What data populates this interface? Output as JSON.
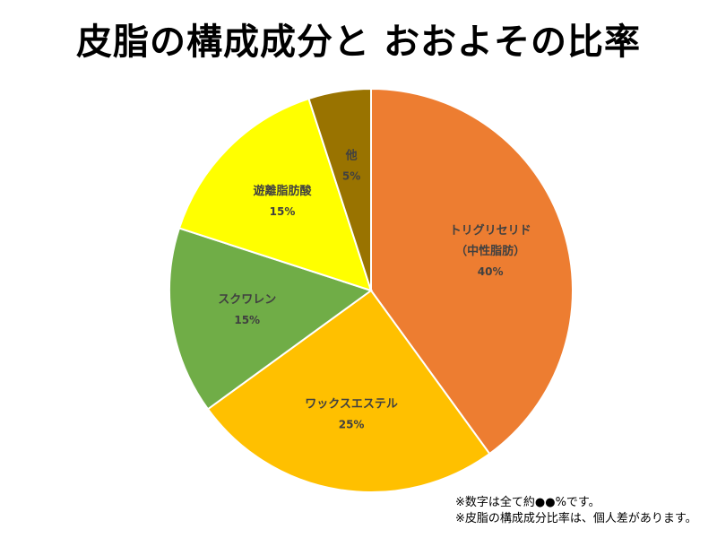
{
  "chart_data": {
    "type": "pie",
    "title": "皮脂の構成成分と おおよその比率",
    "slices": [
      {
        "labels": [
          "トリグリセリド",
          "（中性脂肪）"
        ],
        "value": 40,
        "value_label": "40%",
        "color": "#ED7D31"
      },
      {
        "labels": [
          "ワックスエステル"
        ],
        "value": 25,
        "value_label": "25%",
        "color": "#FFC000"
      },
      {
        "labels": [
          "スクワレン"
        ],
        "value": 15,
        "value_label": "15%",
        "color": "#70AD47"
      },
      {
        "labels": [
          "遊離脂肪酸"
        ],
        "value": 15,
        "value_label": "15%",
        "color": "#FFFF00"
      },
      {
        "labels": [
          "他"
        ],
        "value": 5,
        "value_label": "5%",
        "color": "#997300"
      }
    ],
    "start": "12 o'clock",
    "direction": "clockwise",
    "slice_border_color": "#ffffff",
    "label_color": "#404040",
    "legend": "none"
  },
  "notes": [
    "※数字は全て約●●%です。",
    "※皮脂の構成成分比率は、個人差があります。"
  ]
}
